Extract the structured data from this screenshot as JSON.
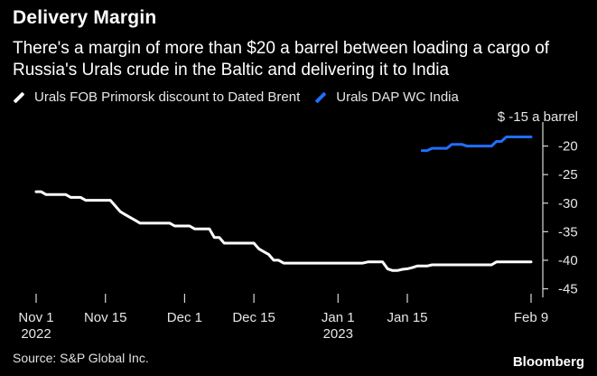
{
  "header": {
    "title": "Delivery Margin",
    "subtitle": "There's a margin of more than $20 a barrel between loading a cargo of Russia's Urals crude in the Baltic and delivering it to India"
  },
  "colors": {
    "fob": "#ffffff",
    "dap": "#1f6fff",
    "background": "#000000"
  },
  "footer": {
    "source": "Source: S&P Global Inc.",
    "brand": "Bloomberg"
  },
  "chart_data": {
    "type": "line",
    "title": "Delivery Margin",
    "ylabel": "$ -15 a barrel",
    "xlabel": "",
    "x_ticks": [
      {
        "day": 0,
        "label": "Nov 1",
        "sub": "2022"
      },
      {
        "day": 14,
        "label": "Nov 15",
        "sub": ""
      },
      {
        "day": 30,
        "label": "Dec 1",
        "sub": ""
      },
      {
        "day": 44,
        "label": "Dec 15",
        "sub": ""
      },
      {
        "day": 61,
        "label": "Jan 1",
        "sub": "2023"
      },
      {
        "day": 75,
        "label": "Jan 15",
        "sub": ""
      },
      {
        "day": 100,
        "label": "Feb 9",
        "sub": ""
      }
    ],
    "y_ticks": [
      {
        "value": -15,
        "label": "$ -15 a barrel"
      },
      {
        "value": -20,
        "label": "-20"
      },
      {
        "value": -25,
        "label": "-25"
      },
      {
        "value": -30,
        "label": "-30"
      },
      {
        "value": -35,
        "label": "-35"
      },
      {
        "value": -40,
        "label": "-40"
      },
      {
        "value": -45,
        "label": "-45"
      }
    ],
    "xlim": [
      0,
      100
    ],
    "ylim": [
      -46.5,
      -15
    ],
    "legend_position": "top-left",
    "series": [
      {
        "name": "Urals FOB Primorsk discount to Dated Brent",
        "color": "#ffffff",
        "points": [
          [
            0,
            -28.0
          ],
          [
            1,
            -28.0
          ],
          [
            2,
            -28.5
          ],
          [
            3,
            -28.5
          ],
          [
            4,
            -28.5
          ],
          [
            5,
            -28.5
          ],
          [
            6,
            -28.5
          ],
          [
            7,
            -29.0
          ],
          [
            8,
            -29.0
          ],
          [
            9,
            -29.0
          ],
          [
            10,
            -29.5
          ],
          [
            11,
            -29.5
          ],
          [
            12,
            -29.5
          ],
          [
            13,
            -29.5
          ],
          [
            14,
            -29.5
          ],
          [
            15,
            -29.5
          ],
          [
            16,
            -30.5
          ],
          [
            17,
            -31.5
          ],
          [
            18,
            -32.0
          ],
          [
            19,
            -32.5
          ],
          [
            20,
            -33.0
          ],
          [
            21,
            -33.5
          ],
          [
            22,
            -33.5
          ],
          [
            23,
            -33.5
          ],
          [
            24,
            -33.5
          ],
          [
            25,
            -33.5
          ],
          [
            26,
            -33.5
          ],
          [
            27,
            -33.5
          ],
          [
            28,
            -34.0
          ],
          [
            29,
            -34.0
          ],
          [
            30,
            -34.0
          ],
          [
            31,
            -34.0
          ],
          [
            32,
            -34.5
          ],
          [
            33,
            -34.5
          ],
          [
            34,
            -34.5
          ],
          [
            35,
            -34.5
          ],
          [
            36,
            -36.0
          ],
          [
            37,
            -36.0
          ],
          [
            38,
            -37.0
          ],
          [
            39,
            -37.0
          ],
          [
            40,
            -37.0
          ],
          [
            41,
            -37.0
          ],
          [
            42,
            -37.0
          ],
          [
            43,
            -37.0
          ],
          [
            44,
            -37.0
          ],
          [
            45,
            -38.0
          ],
          [
            46,
            -38.5
          ],
          [
            47,
            -39.0
          ],
          [
            48,
            -40.0
          ],
          [
            49,
            -40.0
          ],
          [
            50,
            -40.5
          ],
          [
            51,
            -40.5
          ],
          [
            52,
            -40.5
          ],
          [
            53,
            -40.5
          ],
          [
            54,
            -40.5
          ],
          [
            55,
            -40.5
          ],
          [
            56,
            -40.5
          ],
          [
            57,
            -40.5
          ],
          [
            58,
            -40.5
          ],
          [
            59,
            -40.5
          ],
          [
            60,
            -40.5
          ],
          [
            61,
            -40.5
          ],
          [
            62,
            -40.5
          ],
          [
            63,
            -40.5
          ],
          [
            64,
            -40.5
          ],
          [
            65,
            -40.5
          ],
          [
            66,
            -40.5
          ],
          [
            67,
            -40.3
          ],
          [
            68,
            -40.3
          ],
          [
            69,
            -40.3
          ],
          [
            70,
            -40.3
          ],
          [
            71,
            -41.5
          ],
          [
            72,
            -41.8
          ],
          [
            73,
            -41.8
          ],
          [
            74,
            -41.6
          ],
          [
            75,
            -41.5
          ],
          [
            76,
            -41.3
          ],
          [
            77,
            -41.0
          ],
          [
            78,
            -41.0
          ],
          [
            79,
            -41.0
          ],
          [
            80,
            -40.8
          ],
          [
            81,
            -40.8
          ],
          [
            82,
            -40.8
          ],
          [
            83,
            -40.8
          ],
          [
            84,
            -40.8
          ],
          [
            85,
            -40.8
          ],
          [
            86,
            -40.8
          ],
          [
            87,
            -40.8
          ],
          [
            88,
            -40.8
          ],
          [
            89,
            -40.8
          ],
          [
            90,
            -40.8
          ],
          [
            91,
            -40.8
          ],
          [
            92,
            -40.8
          ],
          [
            93,
            -40.3
          ],
          [
            94,
            -40.3
          ],
          [
            95,
            -40.3
          ],
          [
            96,
            -40.3
          ],
          [
            97,
            -40.3
          ],
          [
            98,
            -40.3
          ],
          [
            99,
            -40.3
          ],
          [
            100,
            -40.3
          ]
        ]
      },
      {
        "name": "Urals DAP WC India",
        "color": "#1f6fff",
        "points": [
          [
            78,
            -20.8
          ],
          [
            79,
            -20.8
          ],
          [
            80,
            -20.4
          ],
          [
            81,
            -20.4
          ],
          [
            82,
            -20.4
          ],
          [
            83,
            -20.4
          ],
          [
            84,
            -19.7
          ],
          [
            85,
            -19.7
          ],
          [
            86,
            -19.7
          ],
          [
            87,
            -20.0
          ],
          [
            88,
            -20.0
          ],
          [
            89,
            -20.0
          ],
          [
            90,
            -20.0
          ],
          [
            91,
            -20.0
          ],
          [
            92,
            -20.0
          ],
          [
            93,
            -19.2
          ],
          [
            94,
            -19.2
          ],
          [
            95,
            -18.4
          ],
          [
            96,
            -18.4
          ],
          [
            97,
            -18.4
          ],
          [
            98,
            -18.4
          ],
          [
            99,
            -18.4
          ],
          [
            100,
            -18.4
          ]
        ]
      }
    ]
  }
}
